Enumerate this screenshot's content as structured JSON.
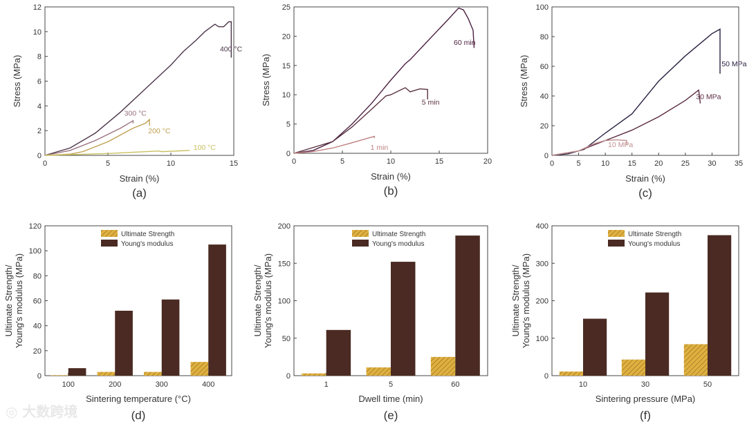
{
  "watermark": "大数跨境",
  "chart_data": [
    {
      "type": "line",
      "caption": "(a)",
      "xlabel": "Strain (%)",
      "ylabel": "Stress (MPa)",
      "xlim": [
        0,
        15
      ],
      "ylim": [
        0,
        12
      ],
      "xticks": [
        0,
        5,
        10,
        15
      ],
      "yticks": [
        0,
        2,
        4,
        6,
        8,
        10,
        12
      ],
      "series": [
        {
          "name": "400 °C",
          "color": "#4a3548",
          "label_at": [
            13.9,
            8.4
          ],
          "points": [
            [
              0,
              0
            ],
            [
              2,
              0.6
            ],
            [
              4,
              1.8
            ],
            [
              6,
              3.5
            ],
            [
              8,
              5.4
            ],
            [
              10,
              7.3
            ],
            [
              11,
              8.4
            ],
            [
              12,
              9.3
            ],
            [
              12.7,
              10
            ],
            [
              13.5,
              10.6
            ],
            [
              13.8,
              10.4
            ],
            [
              14.2,
              10.4
            ],
            [
              14.6,
              10.8
            ],
            [
              14.8,
              10.8
            ],
            [
              14.8,
              7.9
            ]
          ]
        },
        {
          "name": "300 °C",
          "color": "#9a7080",
          "label_at": [
            6.3,
            3.2
          ],
          "points": [
            [
              0,
              0
            ],
            [
              2,
              0.4
            ],
            [
              4,
              1.2
            ],
            [
              6,
              2.2
            ],
            [
              7,
              2.8
            ],
            [
              7,
              2.6
            ]
          ]
        },
        {
          "name": "200 °C",
          "color": "#c0a050",
          "label_at": [
            8.2,
            1.8
          ],
          "points": [
            [
              0,
              0
            ],
            [
              2,
              0.1
            ],
            [
              3,
              0.3
            ],
            [
              5,
              1.1
            ],
            [
              7,
              2.2
            ],
            [
              8,
              2.6
            ],
            [
              8.3,
              2.9
            ],
            [
              8.3,
              2.4
            ]
          ]
        },
        {
          "name": "100 °C",
          "color": "#c8c060",
          "label_at": [
            11.8,
            0.45
          ],
          "points": [
            [
              0,
              0
            ],
            [
              5,
              0.15
            ],
            [
              9,
              0.35
            ],
            [
              9.3,
              0.3
            ],
            [
              11.5,
              0.4
            ]
          ]
        }
      ]
    },
    {
      "type": "line",
      "caption": "(b)",
      "xlabel": "Strain (%)",
      "ylabel": "Stress (MPa)",
      "xlim": [
        0,
        20
      ],
      "ylim": [
        0,
        25
      ],
      "xticks": [
        0,
        5,
        10,
        15,
        20
      ],
      "yticks": [
        0,
        5,
        10,
        15,
        20,
        25
      ],
      "series": [
        {
          "name": "60 min",
          "color": "#4a2040",
          "label_at": [
            16.5,
            18.5
          ],
          "points": [
            [
              0,
              0
            ],
            [
              2,
              0.5
            ],
            [
              4,
              2
            ],
            [
              6,
              5
            ],
            [
              8,
              8.5
            ],
            [
              10,
              12.5
            ],
            [
              11.5,
              15.3
            ],
            [
              12,
              16
            ],
            [
              14,
              19.5
            ],
            [
              16,
              23
            ],
            [
              17,
              24.8
            ],
            [
              17.5,
              24.5
            ],
            [
              18,
              23
            ],
            [
              18.5,
              21
            ],
            [
              18.6,
              18
            ]
          ]
        },
        {
          "name": "5 min",
          "color": "#5a3040",
          "label_at": [
            13.2,
            8.3
          ],
          "points": [
            [
              0,
              0
            ],
            [
              4,
              2
            ],
            [
              6,
              4.5
            ],
            [
              8,
              7.5
            ],
            [
              9.5,
              9.8
            ],
            [
              10,
              10
            ],
            [
              11,
              10.8
            ],
            [
              11.5,
              11.2
            ],
            [
              12,
              10.5
            ],
            [
              13,
              11
            ],
            [
              13.8,
              10.9
            ],
            [
              13.8,
              9.2
            ]
          ]
        },
        {
          "name": "1 min",
          "color": "#c08080",
          "label_at": [
            7.9,
            0.6
          ],
          "points": [
            [
              0,
              0
            ],
            [
              2,
              0.3
            ],
            [
              4,
              0.9
            ],
            [
              6,
              1.8
            ],
            [
              8.3,
              2.9
            ],
            [
              8.3,
              2.6
            ]
          ]
        }
      ]
    },
    {
      "type": "line",
      "caption": "(c)",
      "xlabel": "Strain (%)",
      "ylabel": "Stress (MPa)",
      "xlim": [
        0,
        35
      ],
      "ylim": [
        0,
        100
      ],
      "xticks": [
        0,
        5,
        10,
        15,
        20,
        25,
        30,
        35
      ],
      "yticks": [
        0,
        20,
        40,
        60,
        80,
        100
      ],
      "series": [
        {
          "name": "50 MPa",
          "color": "#2a2040",
          "label_at": [
            31.8,
            60
          ],
          "points": [
            [
              0,
              0
            ],
            [
              3,
              1
            ],
            [
              6,
              4
            ],
            [
              10,
              15
            ],
            [
              15,
              28
            ],
            [
              20,
              50
            ],
            [
              25,
              67
            ],
            [
              30,
              82
            ],
            [
              31.5,
              85
            ],
            [
              31.5,
              55
            ]
          ]
        },
        {
          "name": "30 MPa",
          "color": "#5a2a40",
          "label_at": [
            27,
            38
          ],
          "points": [
            [
              0,
              0
            ],
            [
              5,
              3
            ],
            [
              10,
              10
            ],
            [
              15,
              17
            ],
            [
              20,
              26
            ],
            [
              25,
              37
            ],
            [
              27.5,
              44
            ],
            [
              27.8,
              35
            ]
          ]
        },
        {
          "name": "10 MPa",
          "color": "#c09090",
          "label_at": [
            10.5,
            5.5
          ],
          "points": [
            [
              0,
              0
            ],
            [
              5,
              3
            ],
            [
              8,
              8
            ],
            [
              10,
              10
            ],
            [
              12,
              10.5
            ],
            [
              14,
              10
            ],
            [
              14,
              7
            ]
          ]
        }
      ]
    },
    {
      "type": "bar",
      "caption": "(d)",
      "xlabel": "Sintering temperature (°C)",
      "ylabel": [
        "Ultimate Strength/",
        "Young's modulus (MPa)"
      ],
      "ylim": [
        0,
        120
      ],
      "yticks": [
        0,
        20,
        40,
        60,
        80,
        100,
        120
      ],
      "categories": [
        "100",
        "200",
        "300",
        "400"
      ],
      "series": [
        {
          "name": "Ultimate Strength",
          "color": "#e0b040",
          "values": [
            0.4,
            3,
            3,
            11
          ]
        },
        {
          "name": "Young's modulus",
          "color": "#4a2a22",
          "values": [
            6,
            52,
            61,
            105
          ]
        }
      ],
      "legend": "top-center"
    },
    {
      "type": "bar",
      "caption": "(e)",
      "xlabel": "Dwell time (min)",
      "ylabel": [
        "Ultimate Strength/",
        "Young's modulus (MPa)"
      ],
      "ylim": [
        0,
        200
      ],
      "yticks": [
        0,
        50,
        100,
        150,
        200
      ],
      "categories": [
        "1",
        "5",
        "60"
      ],
      "series": [
        {
          "name": "Ultimate Strength",
          "color": "#e0b040",
          "values": [
            3,
            11,
            25
          ]
        },
        {
          "name": "Young's modulus",
          "color": "#4a2a22",
          "values": [
            61,
            152,
            187
          ]
        }
      ],
      "legend": "top-center"
    },
    {
      "type": "bar",
      "caption": "(f)",
      "xlabel": "Sintering pressure (MPa)",
      "ylabel": [
        "Ultimate Strength/",
        "Young's modulus (MPa)"
      ],
      "ylim": [
        0,
        400
      ],
      "yticks": [
        0,
        100,
        200,
        300,
        400
      ],
      "categories": [
        "10",
        "30",
        "50"
      ],
      "series": [
        {
          "name": "Ultimate Strength",
          "color": "#e0b040",
          "values": [
            11,
            43,
            84
          ]
        },
        {
          "name": "Young's modulus",
          "color": "#4a2a22",
          "values": [
            152,
            222,
            375
          ]
        }
      ],
      "legend": "top-center"
    }
  ]
}
